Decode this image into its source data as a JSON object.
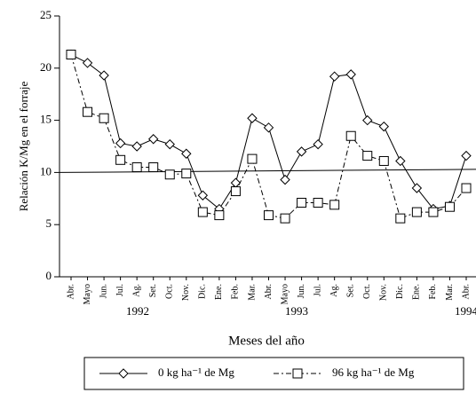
{
  "chart_data": {
    "type": "line",
    "x_label": "Meses del año",
    "y_label": "Relación K/Mg en el forraje",
    "categories": [
      "Abr.",
      "Mayo",
      "Jun.",
      "Jul.",
      "Ag.",
      "Set.",
      "Oct.",
      "Nov.",
      "Dic.",
      "Ene.",
      "Feb.",
      "Mar.",
      "Abr.",
      "Mayo",
      "Jun.",
      "Jul.",
      "Ag.",
      "Set.",
      "Oct.",
      "Nov.",
      "Dic.",
      "Ene.",
      "Feb.",
      "Mar.",
      "Abr."
    ],
    "years": [
      "1992",
      "1993",
      "1994"
    ],
    "series": [
      {
        "name": "0 kg ha⁻¹ de Mg",
        "color": "#000000",
        "marker": "diamond",
        "dash": "solid",
        "values": [
          21.3,
          20.5,
          19.3,
          12.8,
          12.5,
          13.2,
          12.7,
          11.8,
          7.8,
          6.5,
          9.0,
          15.2,
          14.3,
          9.3,
          12.0,
          12.7,
          19.2,
          19.4,
          15.0,
          14.4,
          11.1,
          8.5,
          6.5,
          6.8,
          11.6
        ]
      },
      {
        "name": "96 kg ha⁻¹ de Mg",
        "color": "#000000",
        "marker": "square",
        "dash": "dashdot",
        "values": [
          21.3,
          15.8,
          15.2,
          11.2,
          10.5,
          10.5,
          9.8,
          9.9,
          6.2,
          5.9,
          8.2,
          11.3,
          5.9,
          5.6,
          7.1,
          7.1,
          6.9,
          13.5,
          11.6,
          11.1,
          5.6,
          6.2,
          6.2,
          6.7,
          8.5
        ]
      }
    ],
    "trend_line": [
      10.0,
      10.3
    ],
    "ylim": [
      0,
      25
    ],
    "yticks": [
      0,
      5,
      10,
      15,
      20,
      25
    ],
    "legend": "bottom"
  }
}
